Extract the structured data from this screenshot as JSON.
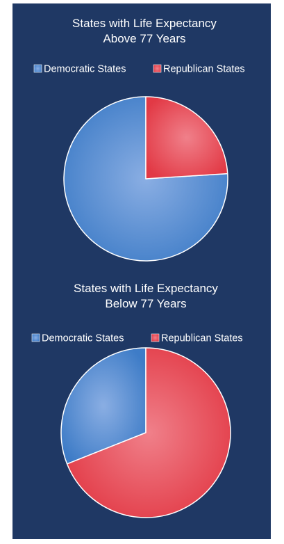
{
  "colors": {
    "background": "#1f3864",
    "democratic": "#5b8fd3",
    "republican": "#e8454f",
    "text": "#ffffff"
  },
  "chart_data": [
    {
      "type": "pie",
      "title_lines": [
        "States with Life Expectancy",
        "Above 77 Years"
      ],
      "legend_position": "top",
      "slices": [
        {
          "label": "Democratic States",
          "value": 76
        },
        {
          "label": "Republican States",
          "value": 24
        }
      ]
    },
    {
      "type": "pie",
      "title_lines": [
        "States with Life Expectancy",
        "Below 77 Years"
      ],
      "legend_position": "top",
      "slices": [
        {
          "label": "Democratic States",
          "value": 31
        },
        {
          "label": "Republican States",
          "value": 69
        }
      ]
    }
  ]
}
